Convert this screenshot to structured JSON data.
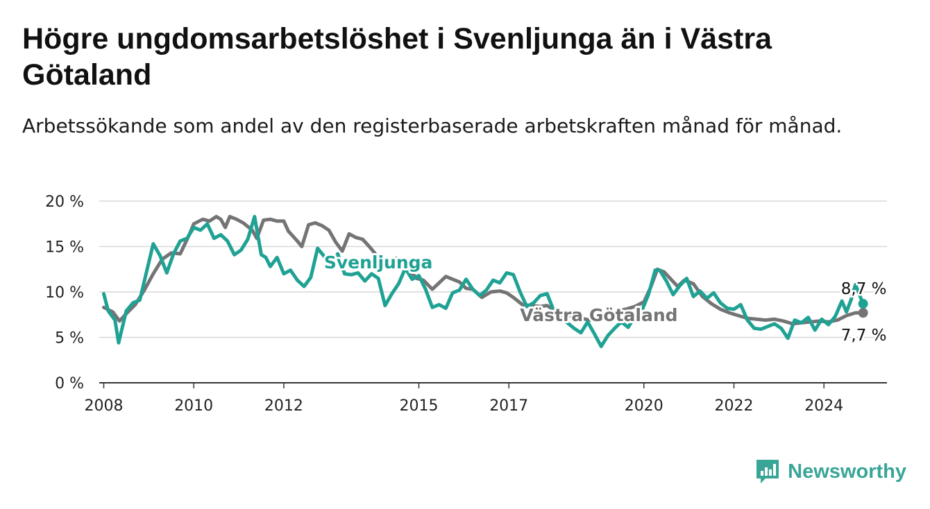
{
  "header": {
    "title": "Högre ungdomsarbetslöshet i Svenljunga än i Västra Götaland",
    "subtitle": "Arbetssökande som andel av den registerbaserade arbetskraften månad för månad."
  },
  "brand": {
    "name": "Newsworthy",
    "color": "#39a596",
    "icon": "bar-chart-logo-icon"
  },
  "chart_data": {
    "type": "line",
    "x_unit": "year",
    "xlim": [
      2007.9,
      2025.4
    ],
    "ylim": [
      0,
      20
    ],
    "y_ticks": [
      {
        "v": 0,
        "label": "0 %"
      },
      {
        "v": 5,
        "label": "5 %"
      },
      {
        "v": 10,
        "label": "10 %"
      },
      {
        "v": 15,
        "label": "15 %"
      },
      {
        "v": 20,
        "label": "20 %"
      }
    ],
    "x_ticks": [
      {
        "v": 2008,
        "label": "2008"
      },
      {
        "v": 2010,
        "label": "2010"
      },
      {
        "v": 2012,
        "label": "2012"
      },
      {
        "v": 2015,
        "label": "2015"
      },
      {
        "v": 2017,
        "label": "2017"
      },
      {
        "v": 2020,
        "label": "2020"
      },
      {
        "v": 2022,
        "label": "2022"
      },
      {
        "v": 2024,
        "label": "2024"
      }
    ],
    "grid": true,
    "series": [
      {
        "name": "Västra Götaland",
        "color": "#747476",
        "end_label": "7,7 %",
        "points": [
          [
            2008.0,
            8.3
          ],
          [
            2008.2,
            7.8
          ],
          [
            2008.35,
            6.8
          ],
          [
            2008.5,
            7.6
          ],
          [
            2008.7,
            8.6
          ],
          [
            2008.9,
            10.2
          ],
          [
            2009.1,
            12.0
          ],
          [
            2009.3,
            13.6
          ],
          [
            2009.5,
            14.3
          ],
          [
            2009.7,
            14.2
          ],
          [
            2009.9,
            16.3
          ],
          [
            2010.0,
            17.5
          ],
          [
            2010.2,
            18.0
          ],
          [
            2010.35,
            17.8
          ],
          [
            2010.5,
            18.3
          ],
          [
            2010.6,
            18.0
          ],
          [
            2010.7,
            17.1
          ],
          [
            2010.8,
            18.3
          ],
          [
            2010.95,
            18.0
          ],
          [
            2011.1,
            17.6
          ],
          [
            2011.3,
            16.8
          ],
          [
            2011.4,
            15.9
          ],
          [
            2011.55,
            17.9
          ],
          [
            2011.7,
            18.0
          ],
          [
            2011.85,
            17.8
          ],
          [
            2012.0,
            17.8
          ],
          [
            2012.1,
            16.7
          ],
          [
            2012.3,
            15.6
          ],
          [
            2012.4,
            15.0
          ],
          [
            2012.55,
            17.4
          ],
          [
            2012.7,
            17.6
          ],
          [
            2012.85,
            17.3
          ],
          [
            2013.0,
            16.8
          ],
          [
            2013.15,
            15.5
          ],
          [
            2013.3,
            14.5
          ],
          [
            2013.45,
            16.4
          ],
          [
            2013.6,
            16.0
          ],
          [
            2013.75,
            15.8
          ],
          [
            2013.9,
            15.0
          ],
          [
            2014.05,
            14.1
          ],
          [
            2014.2,
            12.9
          ],
          [
            2014.35,
            13.5
          ],
          [
            2014.5,
            13.7
          ],
          [
            2014.65,
            12.6
          ],
          [
            2014.8,
            12.4
          ],
          [
            2014.95,
            11.5
          ],
          [
            2015.1,
            11.3
          ],
          [
            2015.3,
            10.3
          ],
          [
            2015.45,
            11.0
          ],
          [
            2015.6,
            11.7
          ],
          [
            2015.75,
            11.4
          ],
          [
            2015.9,
            11.1
          ],
          [
            2016.05,
            10.4
          ],
          [
            2016.2,
            10.3
          ],
          [
            2016.4,
            9.4
          ],
          [
            2016.6,
            10.0
          ],
          [
            2016.8,
            10.1
          ],
          [
            2016.95,
            9.9
          ],
          [
            2017.1,
            9.4
          ],
          [
            2017.3,
            8.6
          ],
          [
            2017.5,
            8.5
          ],
          [
            2017.7,
            8.4
          ],
          [
            2017.85,
            8.5
          ],
          [
            2018.0,
            8.0
          ],
          [
            2018.2,
            7.6
          ],
          [
            2018.4,
            7.3
          ],
          [
            2018.6,
            7.1
          ],
          [
            2018.8,
            6.9
          ],
          [
            2019.0,
            7.1
          ],
          [
            2019.2,
            7.5
          ],
          [
            2019.4,
            7.9
          ],
          [
            2019.6,
            8.1
          ],
          [
            2019.8,
            8.4
          ],
          [
            2020.0,
            8.9
          ],
          [
            2020.15,
            10.5
          ],
          [
            2020.3,
            12.5
          ],
          [
            2020.45,
            12.2
          ],
          [
            2020.6,
            11.4
          ],
          [
            2020.75,
            10.6
          ],
          [
            2020.9,
            11.3
          ],
          [
            2021.1,
            10.9
          ],
          [
            2021.3,
            9.5
          ],
          [
            2021.5,
            8.7
          ],
          [
            2021.7,
            8.1
          ],
          [
            2021.9,
            7.7
          ],
          [
            2022.1,
            7.4
          ],
          [
            2022.3,
            7.1
          ],
          [
            2022.5,
            7.0
          ],
          [
            2022.7,
            6.9
          ],
          [
            2022.9,
            7.0
          ],
          [
            2023.1,
            6.8
          ],
          [
            2023.3,
            6.5
          ],
          [
            2023.5,
            6.6
          ],
          [
            2023.7,
            6.7
          ],
          [
            2023.9,
            6.8
          ],
          [
            2024.1,
            6.7
          ],
          [
            2024.3,
            6.9
          ],
          [
            2024.5,
            7.4
          ],
          [
            2024.7,
            7.7
          ],
          [
            2024.87,
            7.7
          ]
        ]
      },
      {
        "name": "Svenljunga",
        "color": "#1fa294",
        "end_label": "8,7 %",
        "points": [
          [
            2008.0,
            9.8
          ],
          [
            2008.1,
            7.9
          ],
          [
            2008.25,
            6.9
          ],
          [
            2008.33,
            4.4
          ],
          [
            2008.5,
            7.9
          ],
          [
            2008.65,
            8.8
          ],
          [
            2008.8,
            9.1
          ],
          [
            2008.95,
            12.2
          ],
          [
            2009.1,
            15.3
          ],
          [
            2009.25,
            14.0
          ],
          [
            2009.4,
            12.1
          ],
          [
            2009.55,
            14.2
          ],
          [
            2009.7,
            15.6
          ],
          [
            2009.85,
            15.9
          ],
          [
            2010.0,
            17.1
          ],
          [
            2010.15,
            16.8
          ],
          [
            2010.3,
            17.5
          ],
          [
            2010.45,
            15.9
          ],
          [
            2010.6,
            16.3
          ],
          [
            2010.75,
            15.6
          ],
          [
            2010.9,
            14.1
          ],
          [
            2011.05,
            14.6
          ],
          [
            2011.2,
            15.8
          ],
          [
            2011.35,
            18.3
          ],
          [
            2011.5,
            14.1
          ],
          [
            2011.6,
            13.8
          ],
          [
            2011.7,
            12.8
          ],
          [
            2011.85,
            13.8
          ],
          [
            2012.0,
            12.0
          ],
          [
            2012.15,
            12.4
          ],
          [
            2012.3,
            11.3
          ],
          [
            2012.45,
            10.6
          ],
          [
            2012.6,
            11.6
          ],
          [
            2012.75,
            14.8
          ],
          [
            2012.9,
            13.9
          ],
          [
            2013.05,
            13.0
          ],
          [
            2013.2,
            14.2
          ],
          [
            2013.35,
            12.0
          ],
          [
            2013.5,
            11.9
          ],
          [
            2013.65,
            12.1
          ],
          [
            2013.8,
            11.2
          ],
          [
            2013.95,
            12.0
          ],
          [
            2014.1,
            11.5
          ],
          [
            2014.25,
            8.5
          ],
          [
            2014.4,
            9.8
          ],
          [
            2014.55,
            10.9
          ],
          [
            2014.7,
            12.6
          ],
          [
            2014.85,
            11.4
          ],
          [
            2015.0,
            11.8
          ],
          [
            2015.15,
            10.3
          ],
          [
            2015.3,
            8.3
          ],
          [
            2015.45,
            8.6
          ],
          [
            2015.6,
            8.2
          ],
          [
            2015.75,
            9.9
          ],
          [
            2015.9,
            10.2
          ],
          [
            2016.05,
            11.4
          ],
          [
            2016.2,
            10.3
          ],
          [
            2016.35,
            9.6
          ],
          [
            2016.5,
            10.2
          ],
          [
            2016.65,
            11.3
          ],
          [
            2016.8,
            11.0
          ],
          [
            2016.95,
            12.1
          ],
          [
            2017.1,
            11.9
          ],
          [
            2017.25,
            10.0
          ],
          [
            2017.4,
            8.4
          ],
          [
            2017.55,
            8.8
          ],
          [
            2017.7,
            9.6
          ],
          [
            2017.85,
            9.8
          ],
          [
            2018.0,
            7.9
          ],
          [
            2018.15,
            7.2
          ],
          [
            2018.3,
            6.6
          ],
          [
            2018.45,
            6.0
          ],
          [
            2018.6,
            5.5
          ],
          [
            2018.75,
            6.7
          ],
          [
            2018.9,
            5.4
          ],
          [
            2019.05,
            4.0
          ],
          [
            2019.2,
            5.2
          ],
          [
            2019.35,
            6.0
          ],
          [
            2019.5,
            6.7
          ],
          [
            2019.65,
            6.1
          ],
          [
            2019.8,
            7.3
          ],
          [
            2019.95,
            7.9
          ],
          [
            2020.1,
            9.7
          ],
          [
            2020.25,
            12.4
          ],
          [
            2020.35,
            12.4
          ],
          [
            2020.5,
            11.2
          ],
          [
            2020.65,
            9.7
          ],
          [
            2020.8,
            10.7
          ],
          [
            2020.95,
            11.5
          ],
          [
            2021.1,
            9.5
          ],
          [
            2021.25,
            10.1
          ],
          [
            2021.4,
            9.3
          ],
          [
            2021.55,
            9.9
          ],
          [
            2021.7,
            8.8
          ],
          [
            2021.85,
            8.2
          ],
          [
            2022.0,
            8.1
          ],
          [
            2022.15,
            8.6
          ],
          [
            2022.3,
            6.9
          ],
          [
            2022.45,
            6.0
          ],
          [
            2022.6,
            5.9
          ],
          [
            2022.75,
            6.2
          ],
          [
            2022.9,
            6.5
          ],
          [
            2023.05,
            6.0
          ],
          [
            2023.2,
            4.9
          ],
          [
            2023.35,
            6.9
          ],
          [
            2023.5,
            6.6
          ],
          [
            2023.65,
            7.2
          ],
          [
            2023.8,
            5.8
          ],
          [
            2023.95,
            7.0
          ],
          [
            2024.1,
            6.4
          ],
          [
            2024.25,
            7.3
          ],
          [
            2024.4,
            9.0
          ],
          [
            2024.5,
            7.8
          ],
          [
            2024.6,
            9.1
          ],
          [
            2024.7,
            10.8
          ],
          [
            2024.87,
            8.7
          ]
        ]
      }
    ],
    "labels": [
      {
        "text": "Svenljunga",
        "series": 1,
        "x": 2014.1,
        "y": 12.6
      },
      {
        "text": "Västra Götaland",
        "series": 0,
        "x": 2019.0,
        "y": 6.8
      }
    ]
  }
}
